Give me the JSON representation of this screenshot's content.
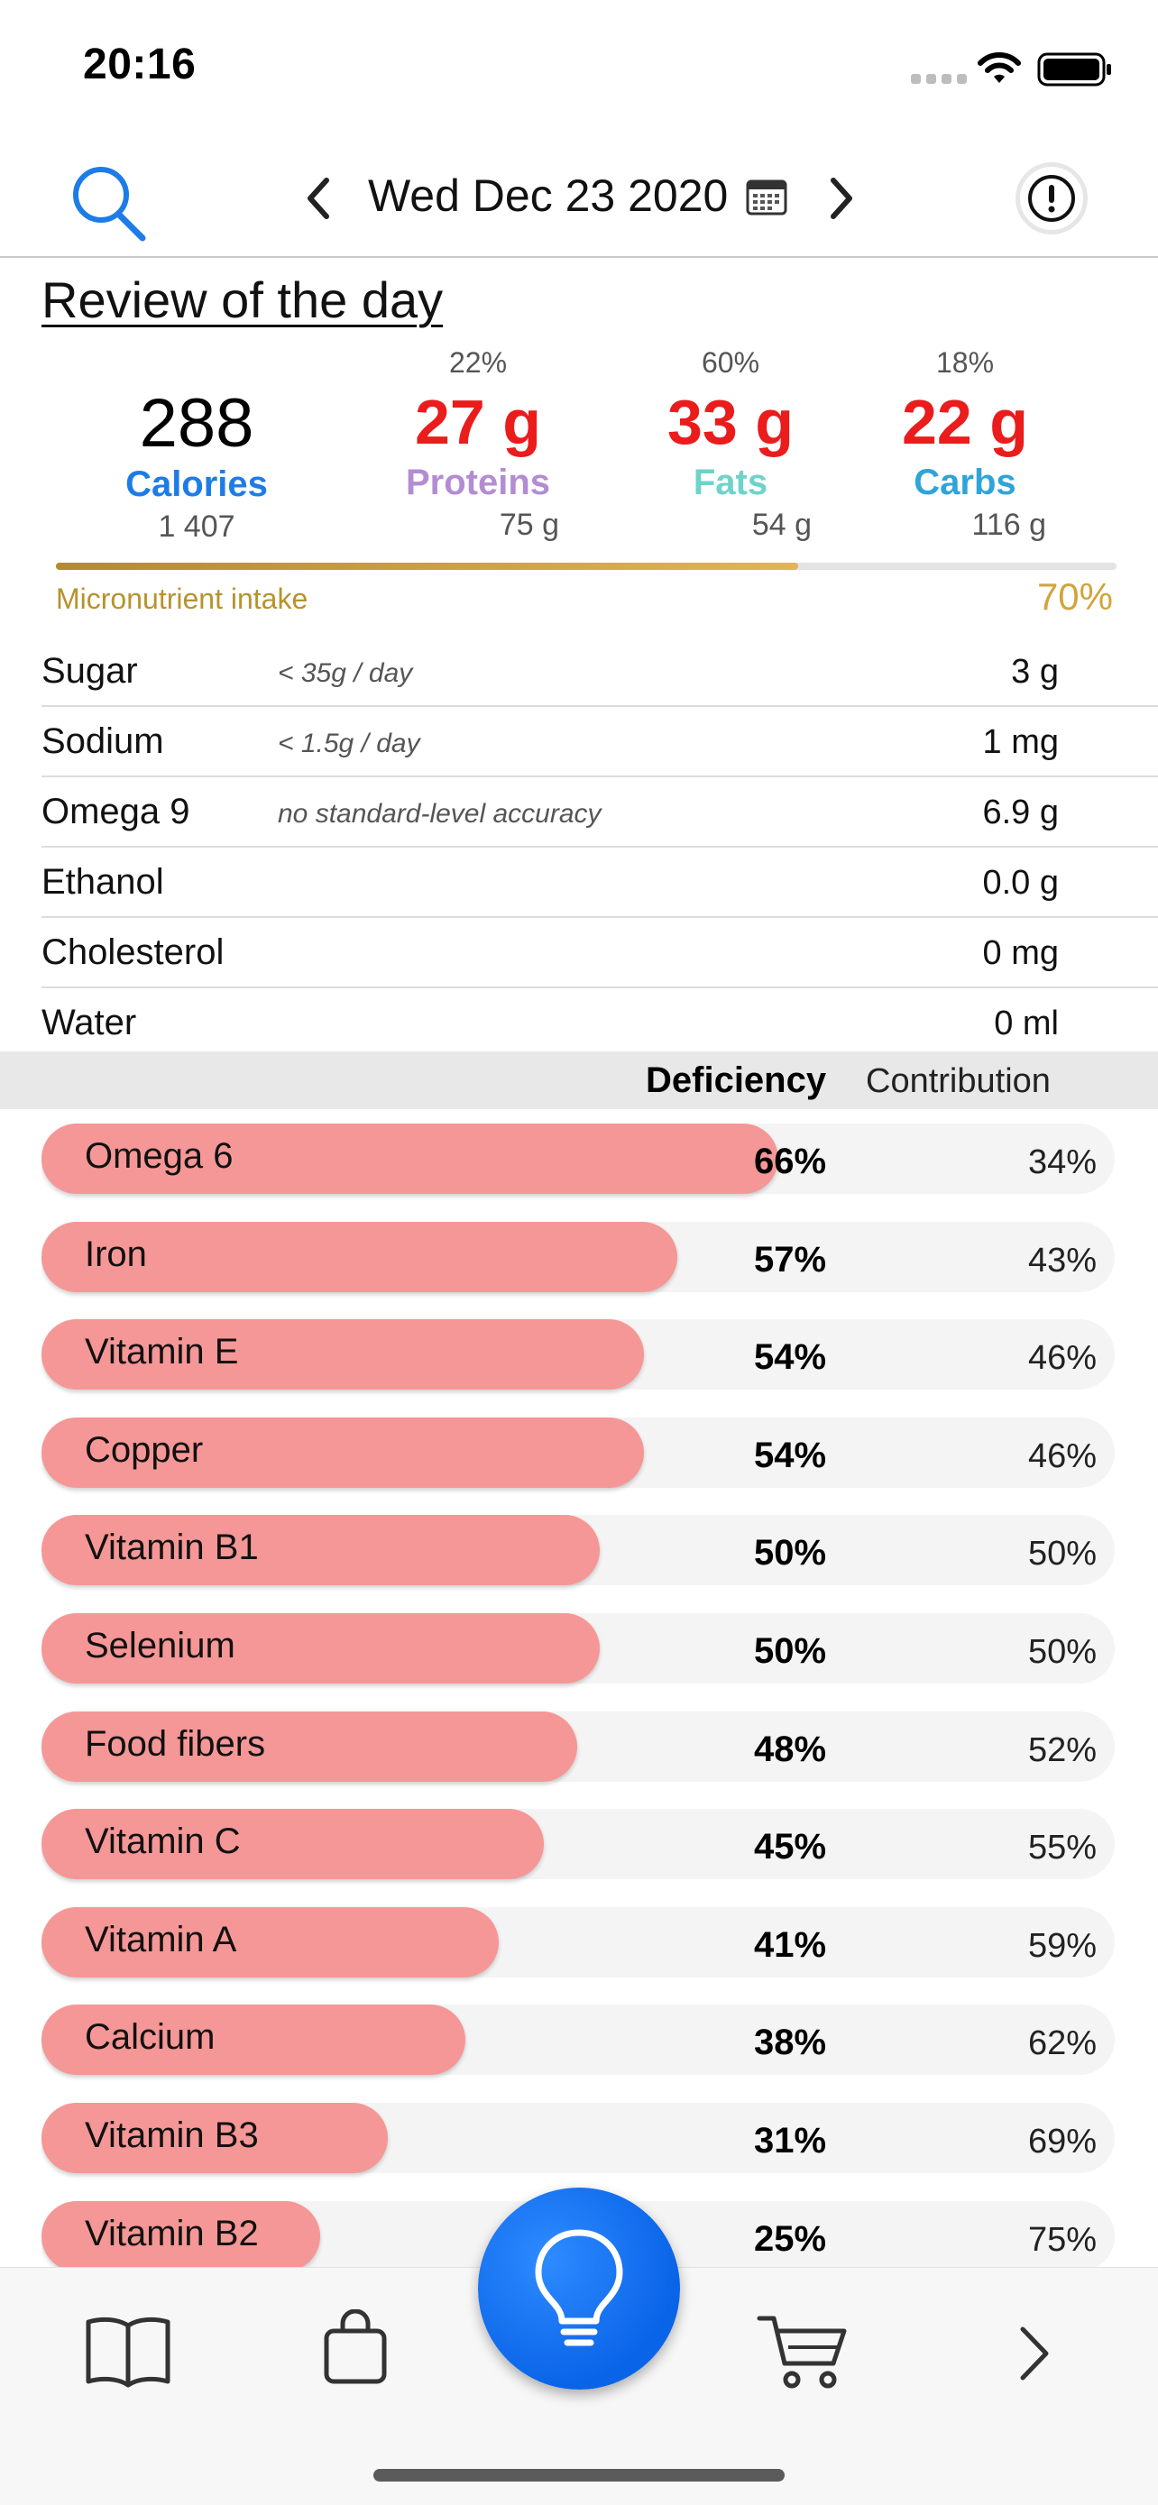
{
  "status": {
    "time": "20:16"
  },
  "nav": {
    "date": "Wed Dec 23 2020"
  },
  "review": {
    "title": "Review of the day"
  },
  "macros": {
    "calories": {
      "value": "288",
      "label": "Calories",
      "target": "1 407"
    },
    "proteins": {
      "percent": "22%",
      "value": "27 g",
      "label": "Proteins",
      "target": "75 g"
    },
    "fats": {
      "percent": "60%",
      "value": "33 g",
      "label": "Fats",
      "target": "54 g"
    },
    "carbs": {
      "percent": "18%",
      "value": "22 g",
      "label": "Carbs",
      "target": "116 g"
    }
  },
  "micronutrients": {
    "label": "Micronutrient intake",
    "percent": "70%",
    "progress": 0.7
  },
  "stats": [
    {
      "name": "Sugar",
      "note": "< 35g / day",
      "value": "3 g"
    },
    {
      "name": "Sodium",
      "note": "< 1.5g / day",
      "value": "1 mg"
    },
    {
      "name": "Omega 9",
      "note": "no standard-level accuracy",
      "value": "6.9 g"
    },
    {
      "name": "Ethanol",
      "note": "",
      "value": "0.0 g"
    },
    {
      "name": "Cholesterol",
      "note": "",
      "value": "0 mg"
    },
    {
      "name": "Water",
      "note": "",
      "value": "0 ml"
    }
  ],
  "deficiency_header": {
    "deficiency": "Deficiency",
    "contribution": "Contribution"
  },
  "deficiencies": [
    {
      "name": "Omega 6",
      "deficiency": "66%",
      "contribution": "34%",
      "level": 0.66
    },
    {
      "name": "Iron",
      "deficiency": "57%",
      "contribution": "43%",
      "level": 0.57
    },
    {
      "name": "Vitamin E",
      "deficiency": "54%",
      "contribution": "46%",
      "level": 0.54
    },
    {
      "name": "Copper",
      "deficiency": "54%",
      "contribution": "46%",
      "level": 0.54
    },
    {
      "name": "Vitamin B1",
      "deficiency": "50%",
      "contribution": "50%",
      "level": 0.5
    },
    {
      "name": "Selenium",
      "deficiency": "50%",
      "contribution": "50%",
      "level": 0.5
    },
    {
      "name": "Food fibers",
      "deficiency": "48%",
      "contribution": "52%",
      "level": 0.48
    },
    {
      "name": "Vitamin C",
      "deficiency": "45%",
      "contribution": "55%",
      "level": 0.45
    },
    {
      "name": "Vitamin A",
      "deficiency": "41%",
      "contribution": "59%",
      "level": 0.41
    },
    {
      "name": "Calcium",
      "deficiency": "38%",
      "contribution": "62%",
      "level": 0.38
    },
    {
      "name": "Vitamin B3",
      "deficiency": "31%",
      "contribution": "69%",
      "level": 0.31
    },
    {
      "name": "Vitamin B2",
      "deficiency": "25%",
      "contribution": "75%",
      "level": 0.25
    }
  ],
  "colors": {
    "accent_blue": "#1e7ce6",
    "macro_value_red": "#ea1c1c",
    "proteins": "#b38cd3",
    "fats": "#6ed3c9",
    "carbs": "#2fa4d8",
    "micronutrient_gold": "#d3a43b",
    "deficiency_bar": "#f59796"
  },
  "icons": {
    "search": "search-icon",
    "prev": "chevron-left-icon",
    "calendar": "calendar-icon",
    "next": "chevron-right-icon",
    "alert": "alert-icon",
    "journal": "book-icon",
    "bag": "bag-icon",
    "tips": "lightbulb-icon",
    "cart": "cart-icon",
    "more": "chevron-right-icon"
  }
}
